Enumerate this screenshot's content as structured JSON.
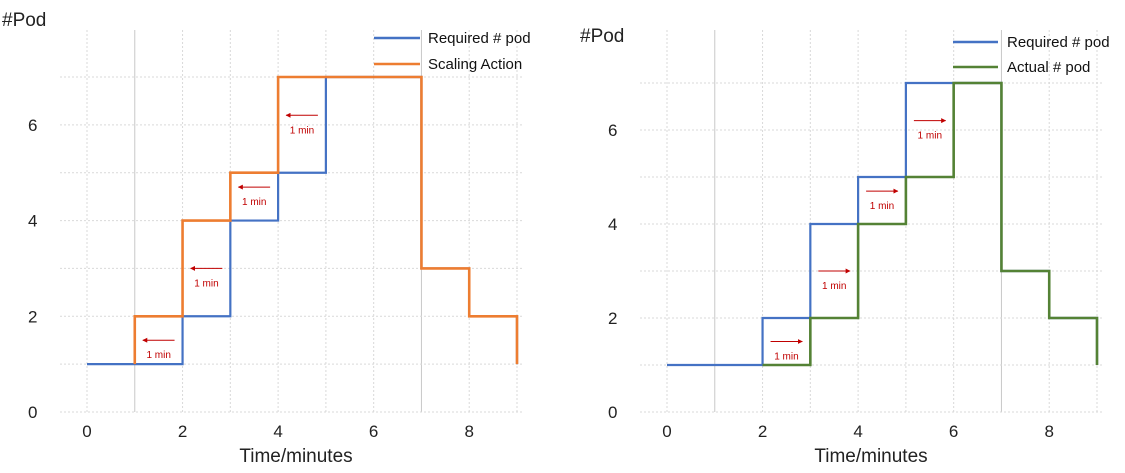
{
  "chart_data": [
    {
      "type": "line",
      "step": true,
      "ylabel": "#Pod",
      "xlabel": "Time/minutes",
      "xlim": [
        0,
        9
      ],
      "ylim": [
        0,
        7.8
      ],
      "x_ticks": [
        0,
        2,
        4,
        6,
        8
      ],
      "y_ticks": [
        0,
        2,
        4,
        6
      ],
      "grid": true,
      "legend_position": "top-right",
      "series": [
        {
          "name": "Required # pod",
          "color": "#4472c4",
          "points": [
            [
              0,
              1
            ],
            [
              2,
              1
            ],
            [
              2,
              2
            ],
            [
              3,
              2
            ],
            [
              3,
              4
            ],
            [
              4,
              4
            ],
            [
              4,
              5
            ],
            [
              5,
              5
            ],
            [
              5,
              7
            ],
            [
              7,
              7
            ],
            [
              7,
              3
            ],
            [
              8,
              3
            ],
            [
              8,
              2
            ],
            [
              9,
              2
            ],
            [
              9,
              1
            ]
          ]
        },
        {
          "name": "Scaling Action",
          "color": "#ed7d31",
          "points": [
            [
              1,
              1
            ],
            [
              1,
              2
            ],
            [
              2,
              2
            ],
            [
              2,
              4
            ],
            [
              3,
              4
            ],
            [
              3,
              5
            ],
            [
              4,
              5
            ],
            [
              4,
              7
            ],
            [
              7,
              7
            ],
            [
              7,
              3
            ],
            [
              8,
              3
            ],
            [
              8,
              2
            ],
            [
              9,
              2
            ],
            [
              9,
              1
            ]
          ]
        }
      ],
      "annotations": [
        {
          "label": "1 min",
          "x_from": 2,
          "x_to": 1,
          "y": 1.5
        },
        {
          "label": "1 min",
          "x_from": 3,
          "x_to": 2,
          "y": 3.0
        },
        {
          "label": "1 min",
          "x_from": 4,
          "x_to": 3,
          "y": 4.7
        },
        {
          "label": "1 min",
          "x_from": 5,
          "x_to": 4,
          "y": 6.2
        }
      ]
    },
    {
      "type": "line",
      "step": true,
      "ylabel": "#Pod",
      "xlabel": "Time/minutes",
      "xlim": [
        0,
        9
      ],
      "ylim": [
        0,
        7.8
      ],
      "x_ticks": [
        0,
        2,
        4,
        6,
        8
      ],
      "y_ticks": [
        0,
        2,
        4,
        6
      ],
      "grid": true,
      "legend_position": "top-right",
      "series": [
        {
          "name": "Required # pod",
          "color": "#4472c4",
          "points": [
            [
              0,
              1
            ],
            [
              2,
              1
            ],
            [
              2,
              2
            ],
            [
              3,
              2
            ],
            [
              3,
              4
            ],
            [
              4,
              4
            ],
            [
              4,
              5
            ],
            [
              5,
              5
            ],
            [
              5,
              7
            ],
            [
              7,
              7
            ],
            [
              7,
              3
            ],
            [
              8,
              3
            ],
            [
              8,
              2
            ],
            [
              9,
              2
            ],
            [
              9,
              1
            ]
          ]
        },
        {
          "name": "Actual # pod",
          "color": "#548235",
          "points": [
            [
              2,
              1
            ],
            [
              3,
              1
            ],
            [
              3,
              2
            ],
            [
              4,
              2
            ],
            [
              4,
              4
            ],
            [
              5,
              4
            ],
            [
              5,
              5
            ],
            [
              6,
              5
            ],
            [
              6,
              7
            ],
            [
              7,
              7
            ],
            [
              7,
              3
            ],
            [
              8,
              3
            ],
            [
              8,
              2
            ],
            [
              9,
              2
            ],
            [
              9,
              1
            ]
          ]
        }
      ],
      "annotations": [
        {
          "label": "1 min",
          "x_from": 2,
          "x_to": 3,
          "y": 1.5
        },
        {
          "label": "1 min",
          "x_from": 3,
          "x_to": 4,
          "y": 3.0
        },
        {
          "label": "1 min",
          "x_from": 4,
          "x_to": 5,
          "y": 4.7
        },
        {
          "label": "1 min",
          "x_from": 5,
          "x_to": 6,
          "y": 6.2
        }
      ]
    }
  ]
}
